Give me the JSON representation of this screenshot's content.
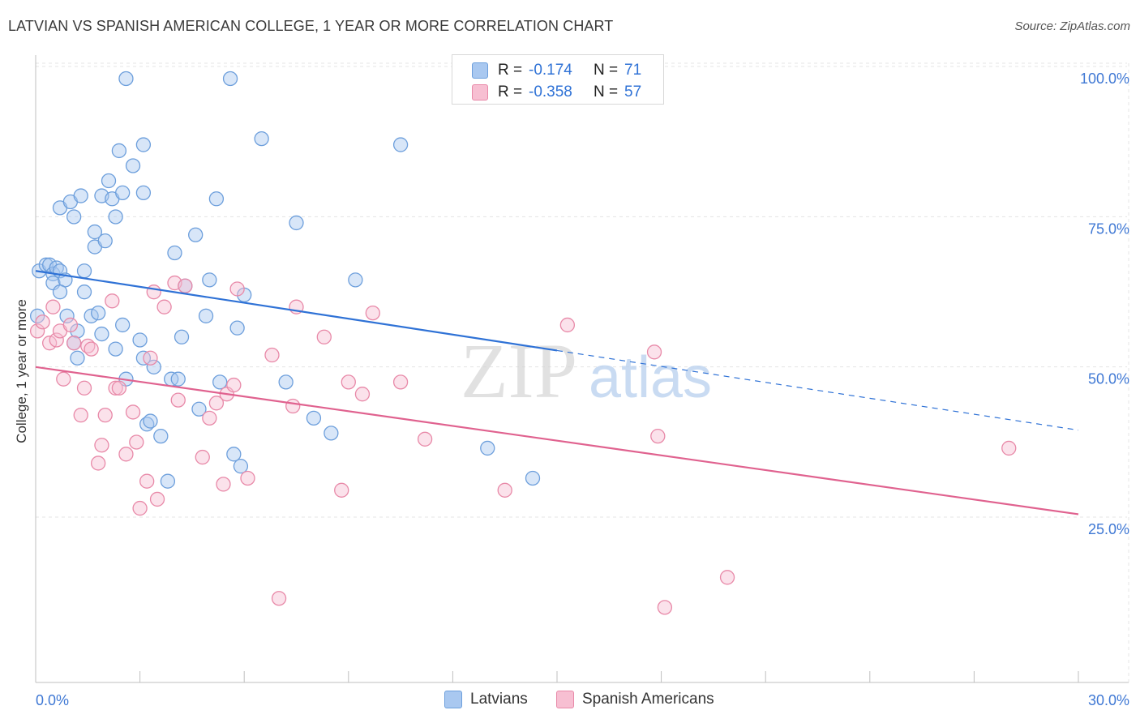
{
  "header": {
    "title": "LATVIAN VS SPANISH AMERICAN COLLEGE, 1 YEAR OR MORE CORRELATION CHART",
    "source": "Source: ZipAtlas.com"
  },
  "watermark": {
    "part1": "ZIP",
    "part2": "atlas"
  },
  "legend": {
    "r_label": "R =",
    "n_label": "N =",
    "rows": [
      {
        "name": "Latvians",
        "r": "-0.174",
        "n": "71"
      },
      {
        "name": "Spanish Americans",
        "r": "-0.358",
        "n": "57"
      }
    ]
  },
  "colors": {
    "blue_fill": "#a9c8f0",
    "blue_stroke": "#6d9fdc",
    "blue_line": "#2f72d6",
    "pink_fill": "#f7bfd2",
    "pink_stroke": "#e889a8",
    "pink_line": "#e0628f",
    "axis_label": "#3f78d4",
    "grid": "#e4e4e4"
  },
  "chart_data": {
    "type": "scatter",
    "title": "LATVIAN VS SPANISH AMERICAN COLLEGE, 1 YEAR OR MORE CORRELATION CHART",
    "xlabel": "",
    "ylabel": "College, 1 year or more",
    "xlim": [
      0,
      30
    ],
    "ylim": [
      0,
      102
    ],
    "x_tick_labels": [
      "0.0%",
      "30.0%"
    ],
    "y_ticks": [
      25,
      50,
      75,
      100
    ],
    "y_tick_labels": [
      "25.0%",
      "50.0%",
      "75.0%",
      "100.0%"
    ],
    "legend_position": "top-center",
    "series": [
      {
        "name": "Latvians",
        "color": "blue",
        "trend": {
          "x_start": 0,
          "y_start": 68.0,
          "x_solid_end": 15.0,
          "x_end": 30,
          "y_end": 41.5
        },
        "points": [
          [
            0.05,
            60.5
          ],
          [
            0.1,
            68.0
          ],
          [
            0.3,
            69.0
          ],
          [
            0.4,
            69.0
          ],
          [
            0.5,
            67.5
          ],
          [
            0.6,
            68.5
          ],
          [
            0.5,
            66.0
          ],
          [
            0.7,
            68.0
          ],
          [
            0.85,
            66.5
          ],
          [
            1.4,
            68.0
          ],
          [
            0.7,
            64.5
          ],
          [
            1.4,
            64.5
          ],
          [
            0.9,
            60.5
          ],
          [
            1.6,
            60.5
          ],
          [
            1.8,
            61.0
          ],
          [
            1.2,
            58.0
          ],
          [
            1.9,
            57.5
          ],
          [
            2.5,
            59.0
          ],
          [
            3.0,
            56.5
          ],
          [
            4.2,
            57.0
          ],
          [
            1.2,
            53.5
          ],
          [
            2.3,
            55.0
          ],
          [
            3.1,
            53.5
          ],
          [
            2.6,
            50.0
          ],
          [
            3.9,
            50.0
          ],
          [
            4.1,
            50.0
          ],
          [
            5.3,
            49.5
          ],
          [
            4.7,
            45.0
          ],
          [
            3.2,
            42.5
          ],
          [
            3.3,
            43.0
          ],
          [
            3.6,
            40.5
          ],
          [
            5.7,
            37.5
          ],
          [
            5.9,
            35.5
          ],
          [
            3.8,
            33.0
          ],
          [
            7.2,
            49.5
          ],
          [
            8.0,
            43.5
          ],
          [
            8.5,
            41.0
          ],
          [
            13.0,
            38.5
          ],
          [
            14.3,
            33.5
          ],
          [
            6.0,
            64.0
          ],
          [
            5.8,
            58.5
          ],
          [
            4.9,
            60.5
          ],
          [
            5.0,
            66.5
          ],
          [
            4.3,
            65.5
          ],
          [
            4.0,
            71.0
          ],
          [
            2.3,
            77.0
          ],
          [
            1.7,
            74.5
          ],
          [
            1.7,
            72.0
          ],
          [
            2.0,
            73.0
          ],
          [
            0.7,
            78.5
          ],
          [
            1.0,
            79.5
          ],
          [
            1.1,
            77.0
          ],
          [
            1.3,
            80.5
          ],
          [
            1.9,
            80.5
          ],
          [
            2.1,
            83.0
          ],
          [
            2.2,
            80.0
          ],
          [
            2.5,
            81.0
          ],
          [
            3.1,
            81.0
          ],
          [
            4.6,
            74.0
          ],
          [
            5.2,
            80.0
          ],
          [
            7.5,
            76.0
          ],
          [
            2.4,
            88.0
          ],
          [
            2.8,
            85.5
          ],
          [
            3.1,
            89.0
          ],
          [
            2.6,
            100.0
          ],
          [
            5.6,
            100.0
          ],
          [
            6.5,
            90.0
          ],
          [
            10.5,
            89.0
          ],
          [
            9.2,
            66.5
          ],
          [
            1.1,
            56.0
          ],
          [
            3.4,
            52.0
          ]
        ]
      },
      {
        "name": "Spanish Americans",
        "color": "pink",
        "trend": {
          "x_start": 0,
          "y_start": 52.0,
          "x_end": 30,
          "y_end": 27.5
        },
        "points": [
          [
            0.05,
            58.0
          ],
          [
            0.2,
            59.5
          ],
          [
            0.4,
            56.0
          ],
          [
            0.5,
            62.0
          ],
          [
            0.6,
            56.5
          ],
          [
            0.7,
            58.0
          ],
          [
            0.8,
            50.0
          ],
          [
            1.0,
            59.0
          ],
          [
            1.1,
            56.0
          ],
          [
            1.3,
            44.0
          ],
          [
            1.4,
            48.5
          ],
          [
            1.5,
            55.5
          ],
          [
            1.6,
            55.0
          ],
          [
            1.8,
            36.0
          ],
          [
            1.9,
            39.0
          ],
          [
            2.0,
            44.0
          ],
          [
            2.2,
            63.0
          ],
          [
            2.3,
            48.5
          ],
          [
            2.4,
            48.5
          ],
          [
            2.6,
            37.5
          ],
          [
            2.8,
            44.5
          ],
          [
            2.9,
            39.5
          ],
          [
            3.0,
            28.5
          ],
          [
            3.2,
            33.0
          ],
          [
            3.3,
            53.5
          ],
          [
            3.4,
            64.5
          ],
          [
            3.5,
            30.0
          ],
          [
            3.7,
            62.0
          ],
          [
            4.0,
            66.0
          ],
          [
            4.1,
            46.5
          ],
          [
            4.3,
            65.5
          ],
          [
            4.8,
            37.0
          ],
          [
            5.0,
            43.5
          ],
          [
            5.2,
            46.0
          ],
          [
            5.4,
            32.5
          ],
          [
            5.5,
            47.5
          ],
          [
            5.7,
            49.0
          ],
          [
            5.8,
            65.0
          ],
          [
            6.1,
            33.5
          ],
          [
            6.8,
            54.0
          ],
          [
            7.0,
            13.5
          ],
          [
            7.5,
            62.0
          ],
          [
            7.4,
            45.5
          ],
          [
            8.3,
            57.0
          ],
          [
            8.8,
            31.5
          ],
          [
            9.0,
            49.5
          ],
          [
            9.4,
            47.5
          ],
          [
            9.7,
            61.0
          ],
          [
            10.5,
            49.5
          ],
          [
            11.2,
            40.0
          ],
          [
            13.5,
            31.5
          ],
          [
            15.3,
            59.0
          ],
          [
            17.8,
            54.5
          ],
          [
            18.1,
            12.0
          ],
          [
            17.9,
            40.5
          ],
          [
            19.9,
            17.0
          ],
          [
            28.0,
            38.5
          ]
        ]
      }
    ]
  }
}
